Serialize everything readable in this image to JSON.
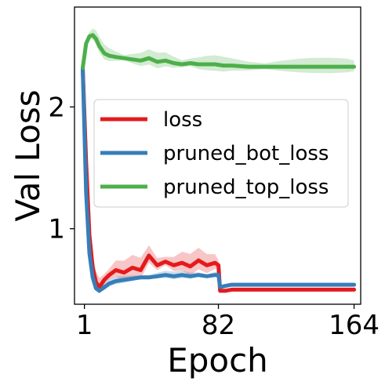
{
  "chart_data": {
    "type": "line",
    "title": "",
    "xlabel": "Epoch",
    "ylabel": "Val Loss",
    "xticks": [
      1,
      82,
      164
    ],
    "yticks": [
      1,
      2
    ],
    "xlim": [
      -5,
      168
    ],
    "ylim": [
      0.38,
      2.82
    ],
    "grid": false,
    "legend_position": "center-right",
    "series": [
      {
        "name": "loss",
        "color": "#e41a1c",
        "x": [
          0,
          2,
          4,
          6,
          8,
          10,
          13,
          16,
          20,
          25,
          30,
          35,
          40,
          45,
          50,
          55,
          60,
          65,
          70,
          75,
          80,
          82,
          83,
          86,
          90,
          100,
          110,
          120,
          130,
          140,
          150,
          160,
          164
        ],
        "y": [
          2.32,
          1.55,
          0.95,
          0.68,
          0.56,
          0.52,
          0.58,
          0.62,
          0.66,
          0.64,
          0.68,
          0.66,
          0.78,
          0.7,
          0.73,
          0.7,
          0.72,
          0.69,
          0.74,
          0.7,
          0.72,
          0.7,
          0.49,
          0.49,
          0.5,
          0.5,
          0.5,
          0.5,
          0.5,
          0.5,
          0.5,
          0.5,
          0.5
        ]
      },
      {
        "name": "pruned_bot_loss",
        "color": "#377eb8",
        "x": [
          0,
          2,
          4,
          6,
          8,
          10,
          13,
          16,
          20,
          25,
          30,
          35,
          40,
          45,
          50,
          55,
          60,
          65,
          70,
          75,
          80,
          82,
          83,
          86,
          90,
          100,
          110,
          120,
          130,
          140,
          150,
          160,
          164
        ],
        "y": [
          2.32,
          1.3,
          0.8,
          0.6,
          0.51,
          0.49,
          0.52,
          0.55,
          0.57,
          0.58,
          0.59,
          0.6,
          0.6,
          0.61,
          0.62,
          0.61,
          0.62,
          0.61,
          0.62,
          0.61,
          0.62,
          0.62,
          0.52,
          0.53,
          0.54,
          0.54,
          0.54,
          0.54,
          0.54,
          0.54,
          0.54,
          0.54,
          0.54
        ]
      },
      {
        "name": "pruned_top_loss",
        "color": "#4daf4a",
        "x": [
          0,
          2,
          4,
          6,
          8,
          10,
          13,
          16,
          20,
          25,
          30,
          35,
          40,
          45,
          50,
          55,
          60,
          65,
          70,
          75,
          80,
          85,
          90,
          100,
          110,
          120,
          130,
          140,
          150,
          160,
          164
        ],
        "y": [
          2.32,
          2.52,
          2.58,
          2.59,
          2.56,
          2.5,
          2.44,
          2.42,
          2.41,
          2.4,
          2.39,
          2.38,
          2.4,
          2.37,
          2.38,
          2.36,
          2.35,
          2.36,
          2.35,
          2.35,
          2.35,
          2.34,
          2.34,
          2.33,
          2.33,
          2.33,
          2.33,
          2.33,
          2.33,
          2.33,
          2.33
        ]
      }
    ]
  }
}
